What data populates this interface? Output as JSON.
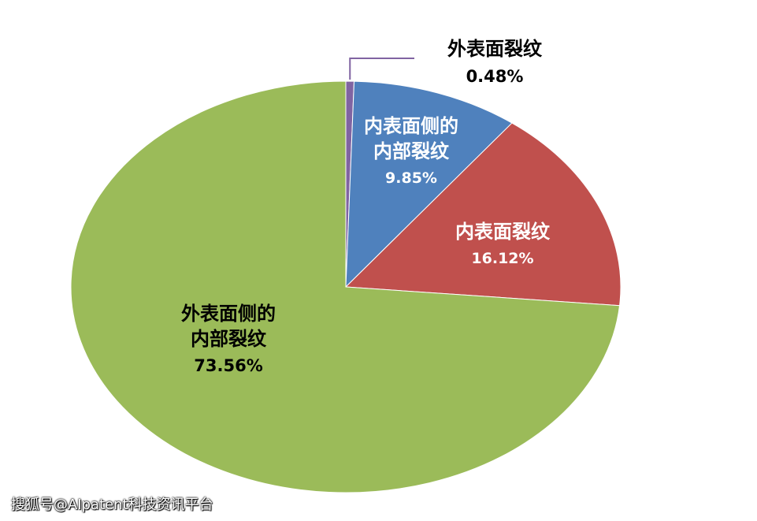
{
  "chart_data": {
    "type": "pie",
    "title": "",
    "slices": [
      {
        "name_lines": [
          "外表面裂纹"
        ],
        "value": 0.48,
        "value_label": "0.48%",
        "color": "#8064a2",
        "label_color": "#000000"
      },
      {
        "name_lines": [
          "内表面侧的",
          "内部裂纹"
        ],
        "value": 9.85,
        "value_label": "9.85%",
        "color": "#4f81bd",
        "label_color": "#ffffff"
      },
      {
        "name_lines": [
          "内表面裂纹"
        ],
        "value": 16.12,
        "value_label": "16.12%",
        "color": "#c0504d",
        "label_color": "#ffffff"
      },
      {
        "name_lines": [
          "外表面侧的",
          "内部裂纹"
        ],
        "value": 73.56,
        "value_label": "73.56%",
        "color": "#9bbb59",
        "label_color": "#000000"
      }
    ]
  },
  "watermark": "搜狐号@AIpatent科技资讯平台"
}
